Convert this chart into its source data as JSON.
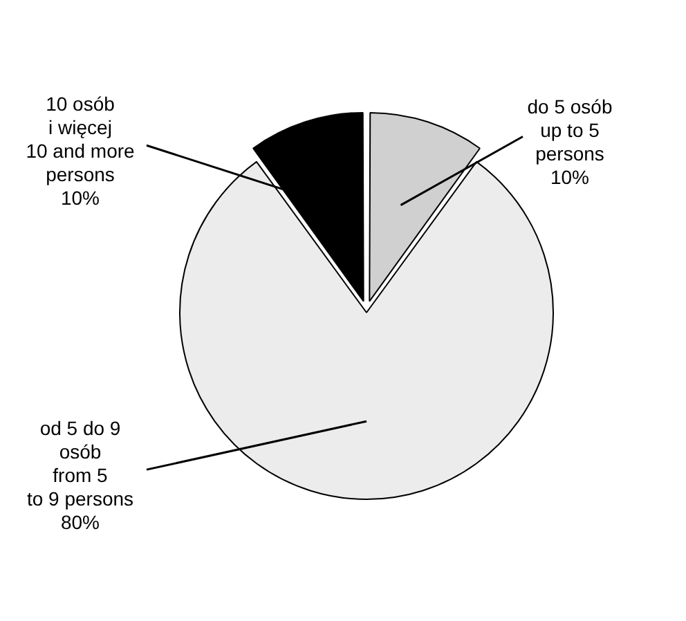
{
  "chart_data": {
    "type": "pie",
    "categories": [
      "do 5 osób\nup to 5\npersons",
      "od 5 do 9\nosób\nfrom 5\nto 9 persons",
      "10 osób\ni więcej\n10 and more\npersons"
    ],
    "values": [
      10,
      80,
      10
    ],
    "value_labels": [
      "10%",
      "80%",
      "10%"
    ],
    "colors": [
      "#d0d0d0",
      "#ececec",
      "#000000"
    ],
    "legend": false
  }
}
